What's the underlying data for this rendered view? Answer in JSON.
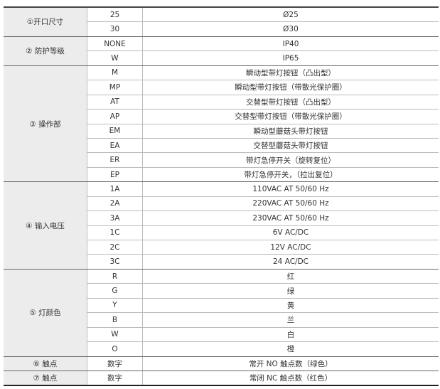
{
  "groups": [
    {
      "label": "①开口尺寸",
      "rows": [
        {
          "code": "25",
          "desc": "Ø25"
        },
        {
          "code": "30",
          "desc": "Ø30"
        }
      ]
    },
    {
      "label": "② 防护等级",
      "rows": [
        {
          "code": "NONE",
          "desc": "IP40"
        },
        {
          "code": "W",
          "desc": "IP65"
        }
      ]
    },
    {
      "label": "③ 操作部",
      "rows": [
        {
          "code": "M",
          "desc": "瞬动型带灯按钮（凸出型）"
        },
        {
          "code": "MP",
          "desc": "瞬动型带灯按钮（带散光保护圈）"
        },
        {
          "code": "AT",
          "desc": "交替型带灯按钮（凸出型）"
        },
        {
          "code": "AP",
          "desc": "交替型带灯按钮（带散光保护圈）"
        },
        {
          "code": "EM",
          "desc": "瞬动型蘑菇头带灯按钮"
        },
        {
          "code": "EA",
          "desc": "交替型蘑菇头带灯按钮"
        },
        {
          "code": "ER",
          "desc": "带灯急停开关（旋转复位）"
        },
        {
          "code": "EP",
          "desc": "带灯急停开关，（拉出复位）"
        }
      ]
    },
    {
      "label": "④ 输入电压",
      "rows": [
        {
          "code": "1A",
          "desc": "110VAC AT 50/60 Hz"
        },
        {
          "code": "2A",
          "desc": "220VAC AT 50/60 Hz"
        },
        {
          "code": "3A",
          "desc": "230VAC AT 50/60 Hz"
        },
        {
          "code": "1C",
          "desc": "6V AC/DC"
        },
        {
          "code": "2C",
          "desc": "12V AC/DC"
        },
        {
          "code": "3C",
          "desc": "24 AC/DC"
        }
      ]
    },
    {
      "label": "⑤ 灯颜色",
      "rows": [
        {
          "code": "R",
          "desc": "红"
        },
        {
          "code": "G",
          "desc": "绿"
        },
        {
          "code": "Y",
          "desc": "黄"
        },
        {
          "code": "B",
          "desc": "兰"
        },
        {
          "code": "W",
          "desc": "白"
        },
        {
          "code": "O",
          "desc": "橙"
        }
      ]
    },
    {
      "label": "⑥ 触点",
      "rows": [
        {
          "code": "数字",
          "desc": "常开 NO 触点数（绿色）"
        }
      ]
    },
    {
      "label": "⑦ 触点",
      "rows": [
        {
          "code": "数字",
          "desc": "常闭 NC 触点数（红色）"
        }
      ]
    }
  ]
}
